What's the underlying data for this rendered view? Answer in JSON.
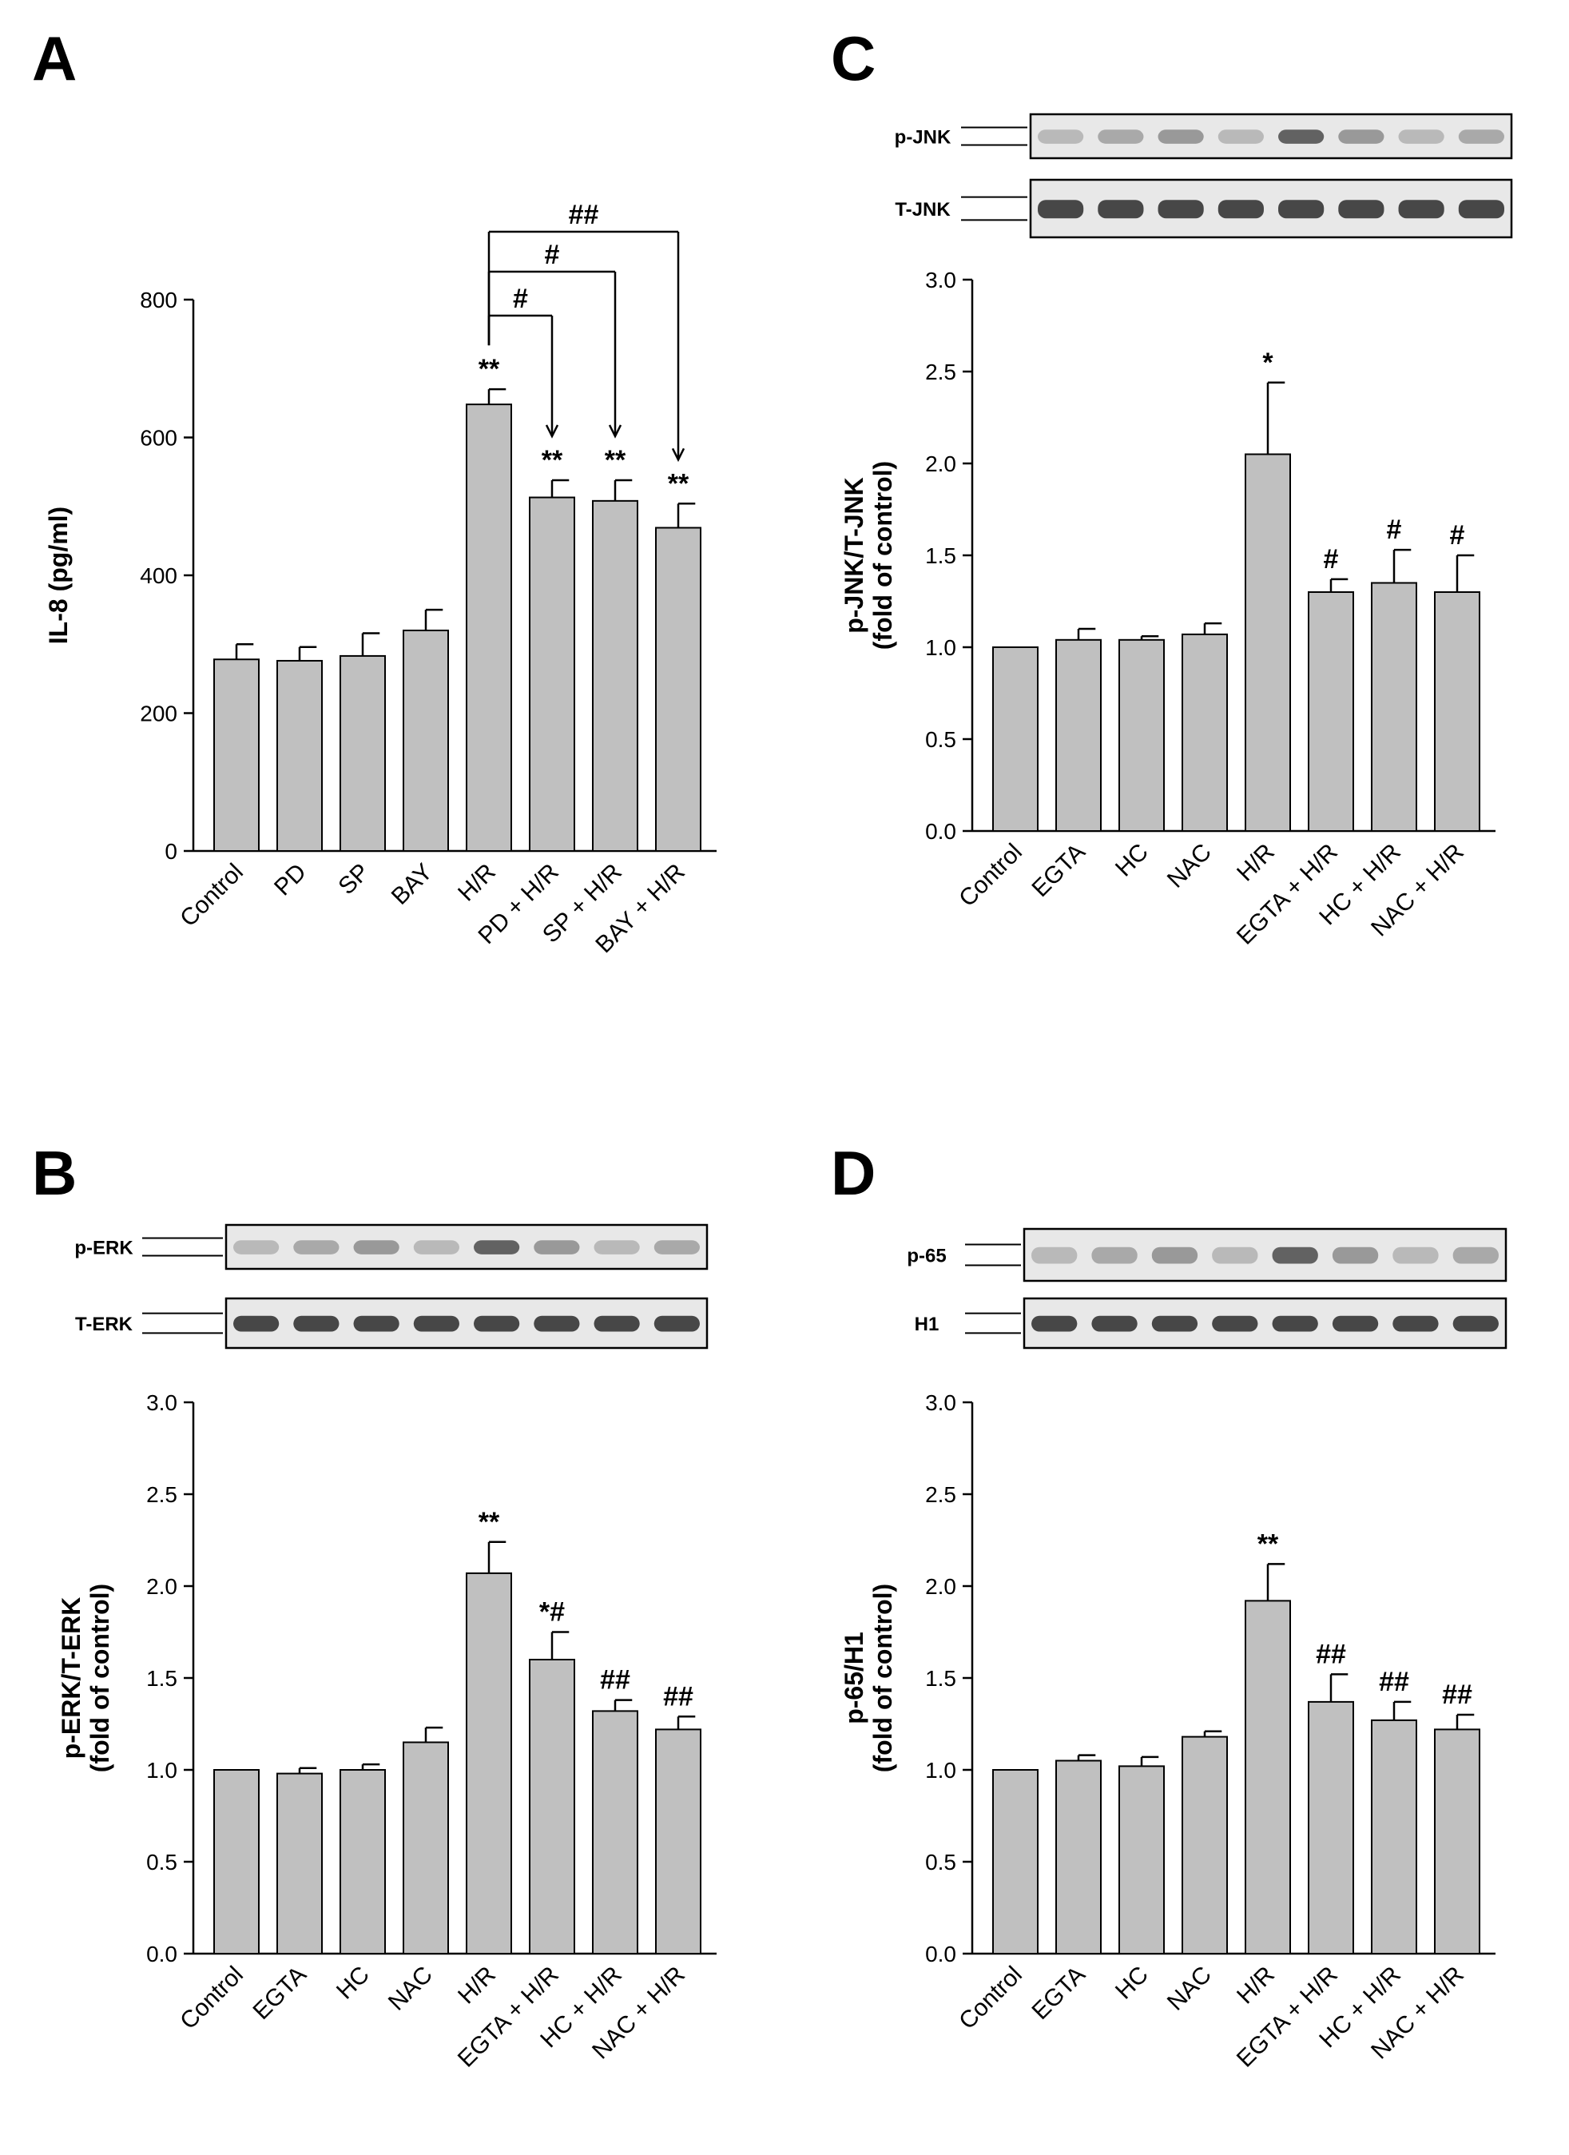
{
  "chart_data": [
    {
      "type": "bar",
      "panel": "A",
      "ylabel": "IL-8 (pg/ml)",
      "ylim": [
        0,
        800
      ],
      "yticks": [
        "0",
        "200",
        "400",
        "600",
        "800"
      ],
      "categories": [
        "Control",
        "PD",
        "SP",
        "BAY",
        "H/R",
        "PD + H/R",
        "SP + H/R",
        "BAY + H/R"
      ],
      "values": [
        278,
        276,
        283,
        320,
        648,
        513,
        508,
        469
      ],
      "errors": [
        22,
        20,
        33,
        30,
        22,
        25,
        30,
        35
      ],
      "significance": [
        "",
        "",
        "",
        "",
        "**",
        "**",
        "**",
        "**"
      ],
      "brackets": [
        {
          "from": "H/R",
          "to": "PD + H/R",
          "label": "#"
        },
        {
          "from": "H/R",
          "to": "SP + H/R",
          "label": "#"
        },
        {
          "from": "H/R",
          "to": "BAY + H/R",
          "label": "##"
        }
      ]
    },
    {
      "type": "bar",
      "panel": "B",
      "ylabel": [
        "p-ERK/T-ERK",
        "(fold of control)"
      ],
      "ylim": [
        0,
        3
      ],
      "yticks": [
        "0.0",
        "0.5",
        "1.0",
        "1.5",
        "2.0",
        "2.5",
        "3.0"
      ],
      "categories": [
        "Control",
        "EGTA",
        "HC",
        "NAC",
        "H/R",
        "EGTA + H/R",
        "HC + H/R",
        "NAC + H/R"
      ],
      "values": [
        1.0,
        0.98,
        1.0,
        1.15,
        2.07,
        1.6,
        1.32,
        1.22
      ],
      "errors": [
        0,
        0.03,
        0.03,
        0.08,
        0.17,
        0.15,
        0.06,
        0.07
      ],
      "significance": [
        "",
        "",
        "",
        "",
        "**",
        "*#",
        "##",
        "##"
      ],
      "blot_labels": [
        "p-ERK",
        "T-ERK"
      ]
    },
    {
      "type": "bar",
      "panel": "C",
      "ylabel": [
        "p-JNK/T-JNK",
        "(fold of control)"
      ],
      "ylim": [
        0,
        3
      ],
      "yticks": [
        "0.0",
        "0.5",
        "1.0",
        "1.5",
        "2.0",
        "2.5",
        "3.0"
      ],
      "categories": [
        "Control",
        "EGTA",
        "HC",
        "NAC",
        "H/R",
        "EGTA + H/R",
        "HC + H/R",
        "NAC + H/R"
      ],
      "values": [
        1.0,
        1.04,
        1.04,
        1.07,
        2.05,
        1.3,
        1.35,
        1.3
      ],
      "errors": [
        0,
        0.06,
        0.02,
        0.06,
        0.39,
        0.07,
        0.18,
        0.2
      ],
      "significance": [
        "",
        "",
        "",
        "",
        "*",
        "#",
        "#",
        "#"
      ],
      "blot_labels": [
        "p-JNK",
        "T-JNK"
      ]
    },
    {
      "type": "bar",
      "panel": "D",
      "ylabel": [
        "p-65/H1",
        "(fold of control)"
      ],
      "ylim": [
        0,
        3
      ],
      "yticks": [
        "0.0",
        "0.5",
        "1.0",
        "1.5",
        "2.0",
        "2.5",
        "3.0"
      ],
      "categories": [
        "Control",
        "EGTA",
        "HC",
        "NAC",
        "H/R",
        "EGTA + H/R",
        "HC + H/R",
        "NAC + H/R"
      ],
      "values": [
        1.0,
        1.05,
        1.02,
        1.18,
        1.92,
        1.37,
        1.27,
        1.22
      ],
      "errors": [
        0,
        0.03,
        0.05,
        0.03,
        0.2,
        0.15,
        0.1,
        0.08
      ],
      "significance": [
        "",
        "",
        "",
        "",
        "**",
        "##",
        "##",
        "##"
      ],
      "blot_labels": [
        "p-65",
        "H1"
      ]
    }
  ],
  "colors": {
    "bar_fill": "#c0c0c0",
    "bar_stroke": "#000000",
    "blot_bg": "#e8e8e8",
    "band_dark": "#2a2a2a"
  }
}
